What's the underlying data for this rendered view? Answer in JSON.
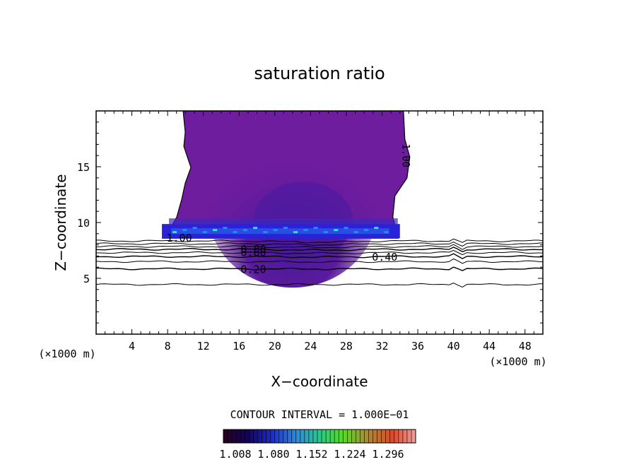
{
  "chart_data": {
    "type": "contour",
    "title": "saturation ratio",
    "xlabel": "X−coordinate",
    "ylabel": "Z−coordinate",
    "x_unit": "(×1000 m)",
    "z_unit": "(×1000 m)",
    "xlim": [
      0,
      50
    ],
    "ylim": [
      0,
      20
    ],
    "x_ticks": [
      4,
      8,
      12,
      16,
      20,
      24,
      28,
      32,
      36,
      40,
      44,
      48
    ],
    "y_ticks": [
      5,
      10,
      15
    ],
    "x_tick_labels": [
      "4",
      "8",
      "12",
      "16",
      "20",
      "24",
      "28",
      "32",
      "36",
      "40",
      "44",
      "48"
    ],
    "y_tick_labels": [
      "5",
      "10",
      "15"
    ],
    "contour_interval_text": "CONTOUR INTERVAL = 1.000E−01",
    "colorbar_labels": [
      "1.008",
      "1.080",
      "1.152",
      "1.224",
      "1.296"
    ],
    "colorbar_range": [
      1.008,
      1.33
    ],
    "contour_labels": [
      {
        "text": "1.00",
        "x": 9.3,
        "z": 8.6
      },
      {
        "text": "0.80",
        "x": 17.6,
        "z": 7.6
      },
      {
        "text": "0.60",
        "x": 17.6,
        "z": 7.3
      },
      {
        "text": "0.40",
        "x": 32.3,
        "z": 6.9
      },
      {
        "text": "0.20",
        "x": 17.6,
        "z": 5.8
      },
      {
        "text": "1.00",
        "x": 34.3,
        "z": 16.0
      }
    ],
    "contour_levels": [
      0.2,
      0.3,
      0.4,
      0.5,
      0.6,
      0.7,
      0.8,
      0.9,
      1.0
    ],
    "supersaturated_region": {
      "x_range": [
        7.6,
        34.0
      ],
      "z_range": [
        8.6,
        20
      ],
      "values_min": 1.008,
      "values_max": 1.33
    }
  }
}
